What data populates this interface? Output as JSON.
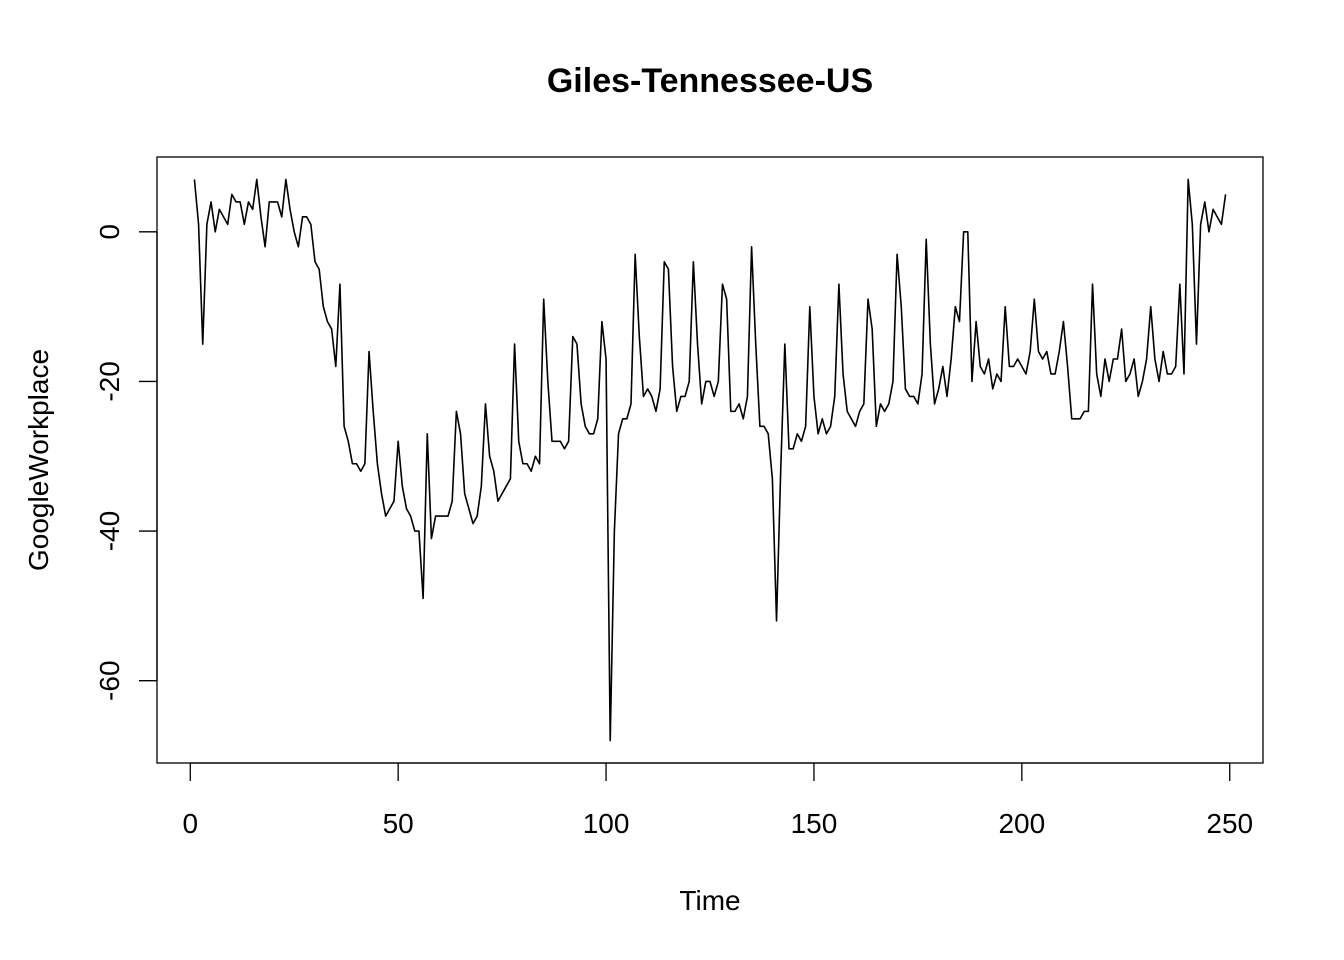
{
  "chart_data": {
    "type": "line",
    "title": "Giles-Tennessee-US",
    "xlabel": "Time",
    "ylabel": "GoogleWorkplace",
    "xlim": [
      -8,
      258
    ],
    "ylim": [
      -71,
      10
    ],
    "x_ticks": [
      0,
      50,
      100,
      150,
      200,
      250
    ],
    "y_ticks": [
      -60,
      -40,
      -20,
      0
    ],
    "grid": false,
    "legend": "none",
    "line_color": "#000000",
    "series": [
      {
        "x_start": 1,
        "values": [
          7,
          1,
          -15,
          1,
          4,
          0,
          3,
          2,
          1,
          5,
          4,
          4,
          1,
          4,
          3,
          7,
          2,
          -2,
          4,
          4,
          4,
          2,
          7,
          3,
          0,
          -2,
          2,
          2,
          1,
          -4,
          -5,
          -10,
          -12,
          -13,
          -18,
          -7,
          -26,
          -28,
          -31,
          -31,
          -32,
          -31,
          -16,
          -24,
          -31,
          -35,
          -38,
          -37,
          -36,
          -28,
          -34,
          -37,
          -38,
          -40,
          -40,
          -49,
          -27,
          -41,
          -38,
          -38,
          -38,
          -38,
          -36,
          -24,
          -27,
          -35,
          -37,
          -39,
          -38,
          -34,
          -23,
          -30,
          -32,
          -36,
          -35,
          -34,
          -33,
          -15,
          -28,
          -31,
          -31,
          -32,
          -30,
          -31,
          -9,
          -20,
          -28,
          -28,
          -28,
          -29,
          -28,
          -14,
          -15,
          -23,
          -26,
          -27,
          -27,
          -25,
          -12,
          -17,
          -68,
          -40,
          -27,
          -25,
          -25,
          -23,
          -3,
          -14,
          -22,
          -21,
          -22,
          -24,
          -21,
          -4,
          -5,
          -18,
          -24,
          -22,
          -22,
          -20,
          -4,
          -15,
          -23,
          -20,
          -20,
          -22,
          -20,
          -7,
          -9,
          -24,
          -24,
          -23,
          -25,
          -22,
          -2,
          -15,
          -26,
          -26,
          -27,
          -33,
          -52,
          -32,
          -15,
          -29,
          -29,
          -27,
          -28,
          -26,
          -10,
          -22,
          -27,
          -25,
          -27,
          -26,
          -22,
          -7,
          -19,
          -24,
          -25,
          -26,
          -24,
          -23,
          -9,
          -13,
          -26,
          -23,
          -24,
          -23,
          -20,
          -3,
          -10,
          -21,
          -22,
          -22,
          -23,
          -19,
          -1,
          -15,
          -23,
          -21,
          -18,
          -22,
          -17,
          -10,
          -12,
          0,
          0,
          -20,
          -12,
          -18,
          -19,
          -17,
          -21,
          -19,
          -20,
          -10,
          -18,
          -18,
          -17,
          -18,
          -19,
          -16,
          -9,
          -16,
          -17,
          -16,
          -19,
          -19,
          -16,
          -12,
          -18,
          -25,
          -25,
          -25,
          -24,
          -24,
          -7,
          -19,
          -22,
          -17,
          -20,
          -17,
          -17,
          -13,
          -20,
          -19,
          -17,
          -22,
          -20,
          -17,
          -10,
          -17,
          -20,
          -16,
          -19,
          -19,
          -18,
          -7,
          -19,
          7,
          1,
          -15,
          1,
          4,
          0,
          3,
          2,
          1,
          5
        ]
      }
    ]
  }
}
